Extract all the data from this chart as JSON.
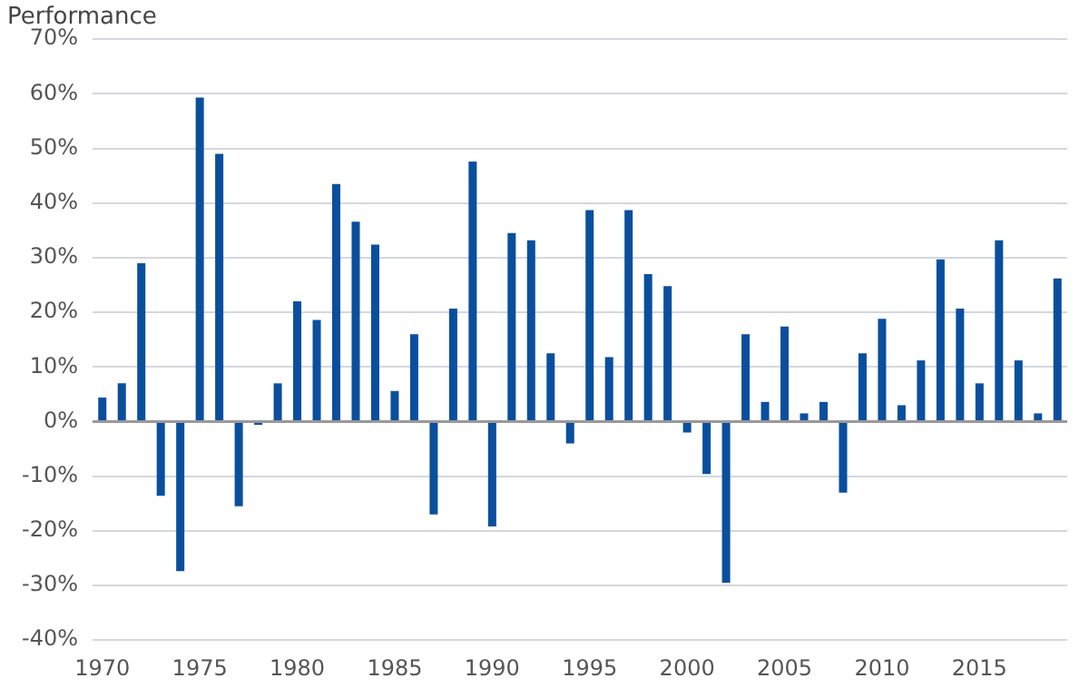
{
  "chart_data": {
    "type": "bar",
    "ylabel": "Performance",
    "categories": [
      "1970",
      null,
      null,
      null,
      null,
      "1975",
      null,
      null,
      null,
      null,
      "1980",
      null,
      null,
      null,
      null,
      "1985",
      null,
      null,
      null,
      null,
      "1990",
      null,
      null,
      null,
      null,
      "1995",
      null,
      null,
      null,
      null,
      "2000",
      null,
      null,
      null,
      null,
      "2005",
      null,
      null,
      null,
      null,
      "2010",
      null,
      null,
      null,
      null,
      "2015",
      null,
      null,
      null,
      null
    ],
    "values": [
      4.4,
      7,
      29,
      -13.6,
      -27.4,
      59.3,
      49,
      -15.5,
      -0.6,
      7,
      22,
      18.6,
      43.5,
      36.6,
      32.4,
      5.6,
      16,
      -17,
      20.7,
      47.6,
      -19.2,
      34.5,
      33.2,
      12.5,
      -4,
      38.7,
      11.8,
      38.7,
      27,
      24.8,
      -2,
      -9.6,
      -29.5,
      16,
      3.6,
      17.4,
      1.5,
      3.6,
      -13,
      12.5,
      18.8,
      3,
      11.2,
      29.7,
      20.7,
      7,
      33.2,
      11.2,
      1.5,
      26.2
    ],
    "color": "#0a4f9e",
    "ylim": [
      -40,
      70
    ],
    "yticks": [
      {
        "value": -40,
        "label": "-40%"
      },
      {
        "value": -30,
        "label": "-30%"
      },
      {
        "value": -20,
        "label": "-20%"
      },
      {
        "value": -10,
        "label": "-10%"
      },
      {
        "value": 0,
        "label": "0%"
      },
      {
        "value": 10,
        "label": "10%"
      },
      {
        "value": 20,
        "label": "20%"
      },
      {
        "value": 30,
        "label": "30%"
      },
      {
        "value": 40,
        "label": "40%"
      },
      {
        "value": 50,
        "label": "50%"
      },
      {
        "value": 60,
        "label": "60%"
      },
      {
        "value": 70,
        "label": "70%"
      }
    ],
    "grid": "y",
    "legend": false
  }
}
